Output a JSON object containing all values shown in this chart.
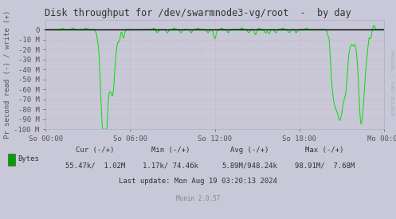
{
  "title": "Disk throughput for /dev/swarmnode3-vg/root  -  by day",
  "ylabel": "Pr second read (-) / write (+)",
  "xlabel_ticks": [
    "So 00:00",
    "So 06:00",
    "So 12:00",
    "So 18:00",
    "Mo 00:00"
  ],
  "ylim": [
    -100,
    10
  ],
  "ytick_vals": [
    0,
    -10,
    -20,
    -30,
    -40,
    -50,
    -60,
    -70,
    -80,
    -90,
    -100
  ],
  "ytick_labels": [
    "0",
    "-10 M",
    "-20 M",
    "-30 M",
    "-40 M",
    "-50 M",
    "-60 M",
    "-70 M",
    "-80 M",
    "-90 M",
    "-100 M"
  ],
  "background_color": "#c8c8d8",
  "plot_bg_color": "#c8c8d8",
  "grid_color_minor": "#e8a0a0",
  "line_color": "#00e000",
  "zero_line_color": "#000000",
  "title_color": "#333333",
  "watermark": "RRDTOOL / TOBI OETIKER",
  "legend_label": "Bytes",
  "legend_color": "#00a000",
  "footer_cur": "Cur (-/+)",
  "footer_cur_val": "55.47k/  1.02M",
  "footer_min": "Min (-/+)",
  "footer_min_val": "1.17k/ 74.46k",
  "footer_avg": "Avg (-/+)",
  "footer_avg_val": "5.89M/948.24k",
  "footer_max": "Max (-/+)",
  "footer_max_val": "98.91M/  7.68M",
  "footer_update": "Last update: Mon Aug 19 03:20:13 2024",
  "footer_munin": "Munin 2.0.57",
  "spine_color": "#aaaacc",
  "tick_color": "#555555",
  "text_color": "#333333"
}
